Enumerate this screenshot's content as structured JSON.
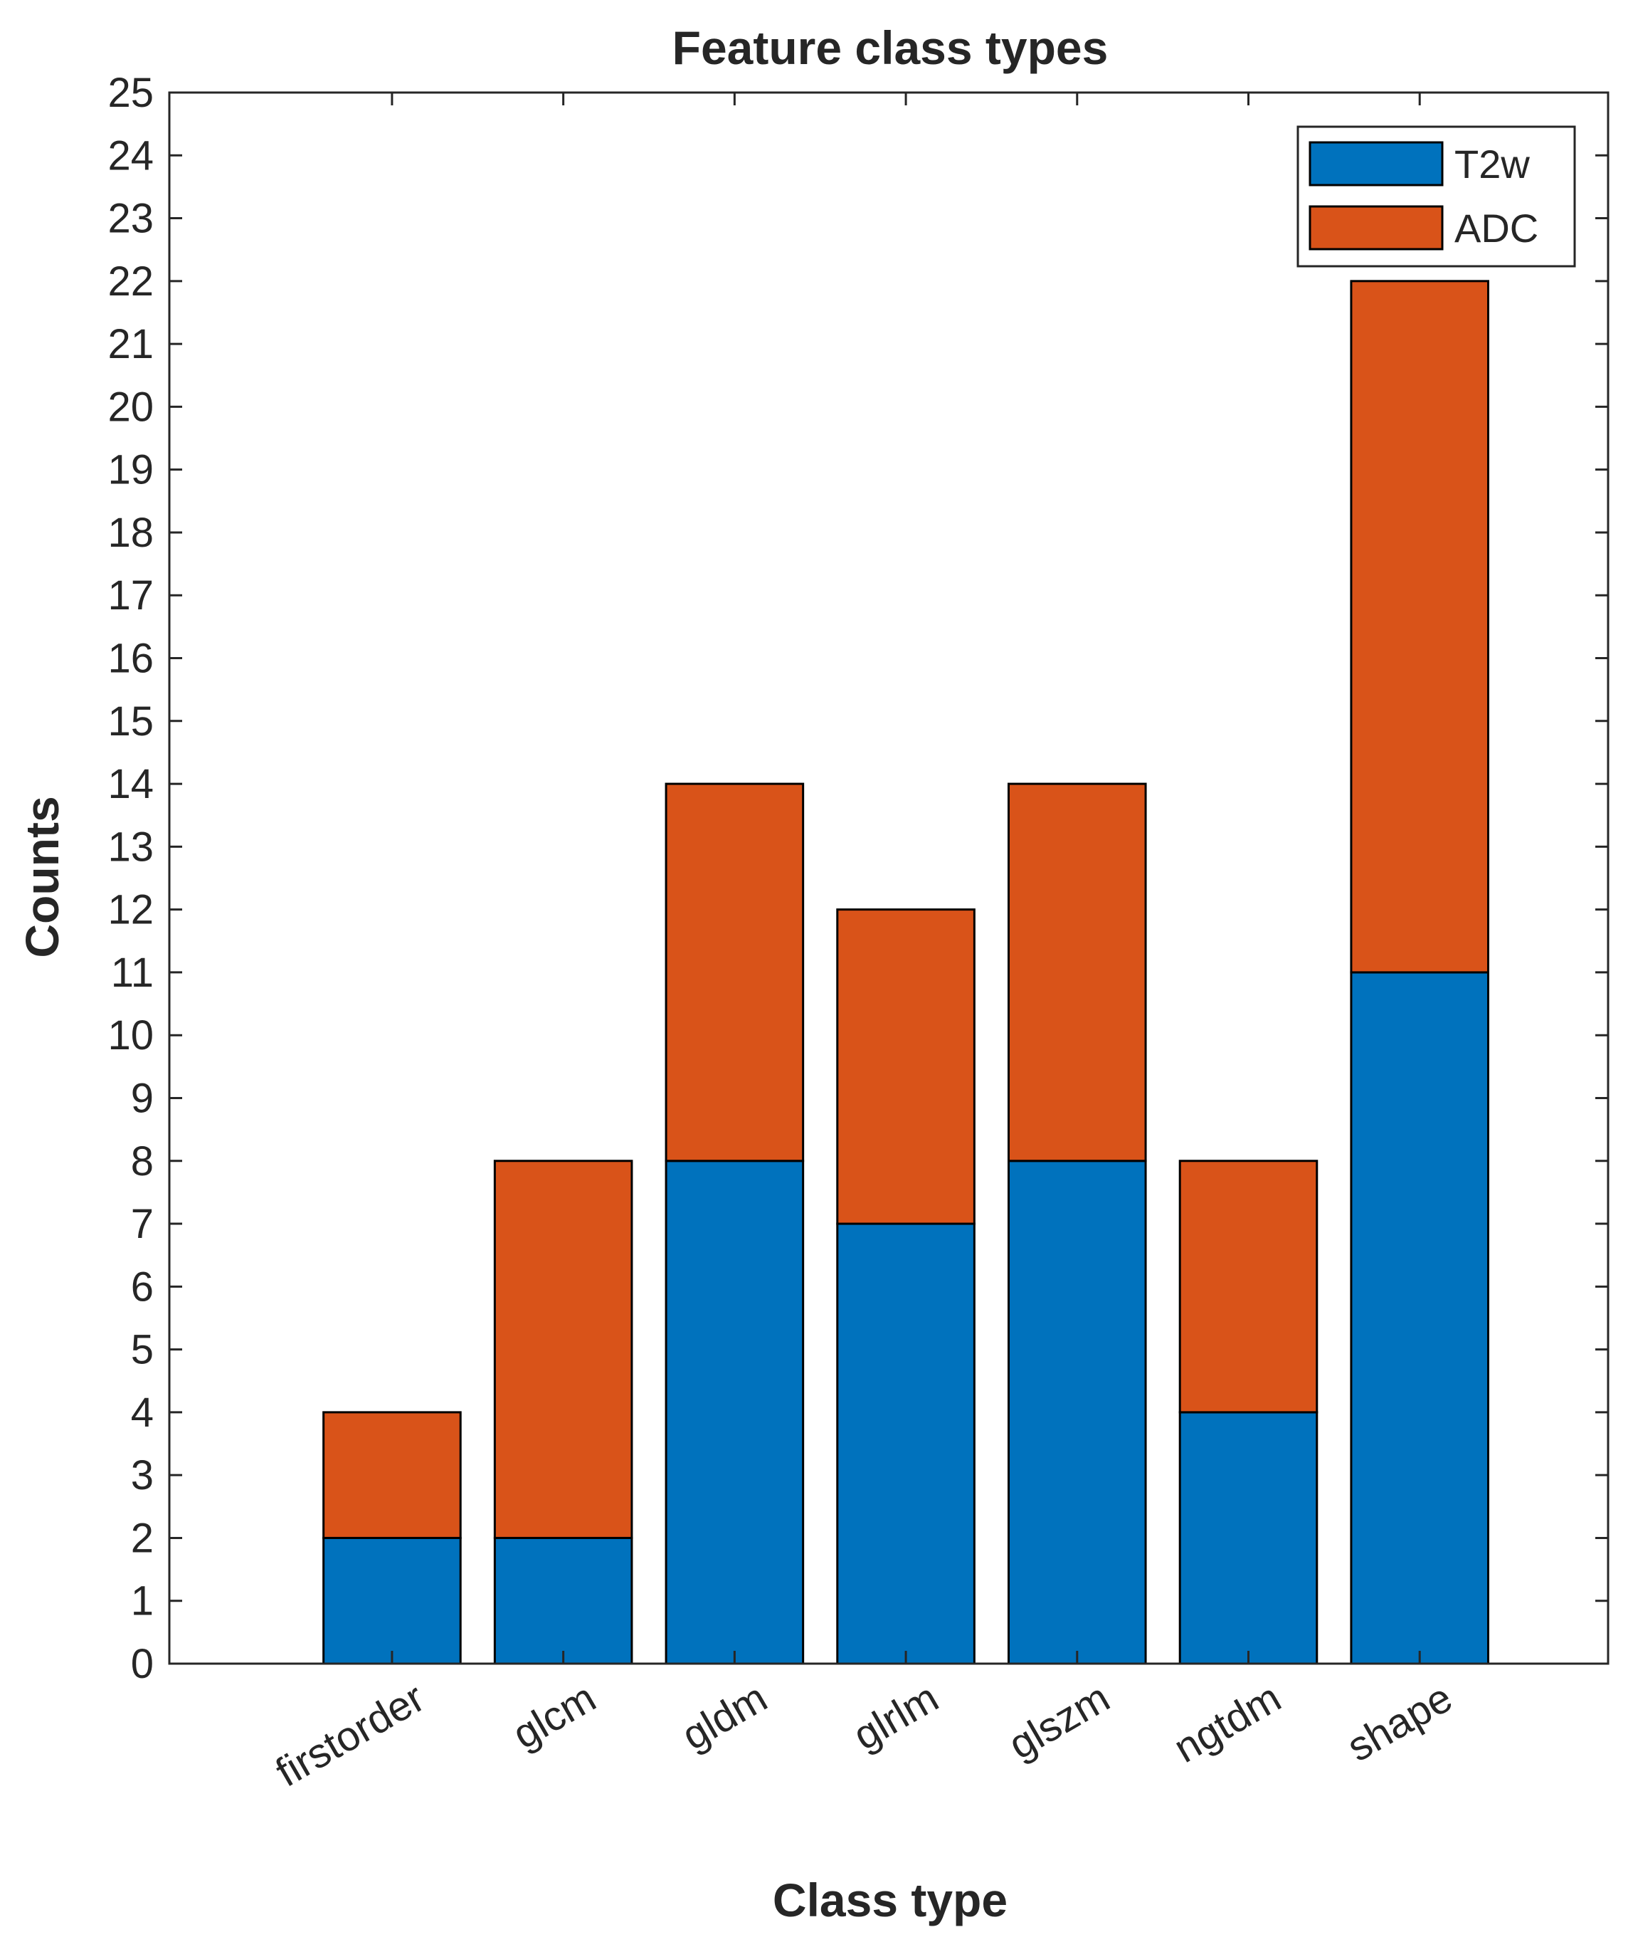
{
  "chart_data": {
    "type": "bar",
    "stacked": true,
    "title": "Feature class types",
    "xlabel": "Class type",
    "ylabel": "Counts",
    "categories": [
      "firstorder",
      "glcm",
      "gldm",
      "glrlm",
      "glszm",
      "ngtdm",
      "shape"
    ],
    "series": [
      {
        "name": "T2w",
        "color": "#0072BD",
        "values": [
          2,
          2,
          8,
          7,
          8,
          4,
          11
        ]
      },
      {
        "name": "ADC",
        "color": "#D95319",
        "values": [
          2,
          6,
          6,
          5,
          6,
          4,
          11
        ]
      }
    ],
    "ylim": [
      0,
      25
    ],
    "yticks": [
      0,
      1,
      2,
      3,
      4,
      5,
      6,
      7,
      8,
      9,
      10,
      11,
      12,
      13,
      14,
      15,
      16,
      17,
      18,
      19,
      20,
      21,
      22,
      23,
      24,
      25
    ],
    "xlim": [
      -0.3,
      8.1
    ],
    "grid": false,
    "legend_position": "top-right"
  }
}
